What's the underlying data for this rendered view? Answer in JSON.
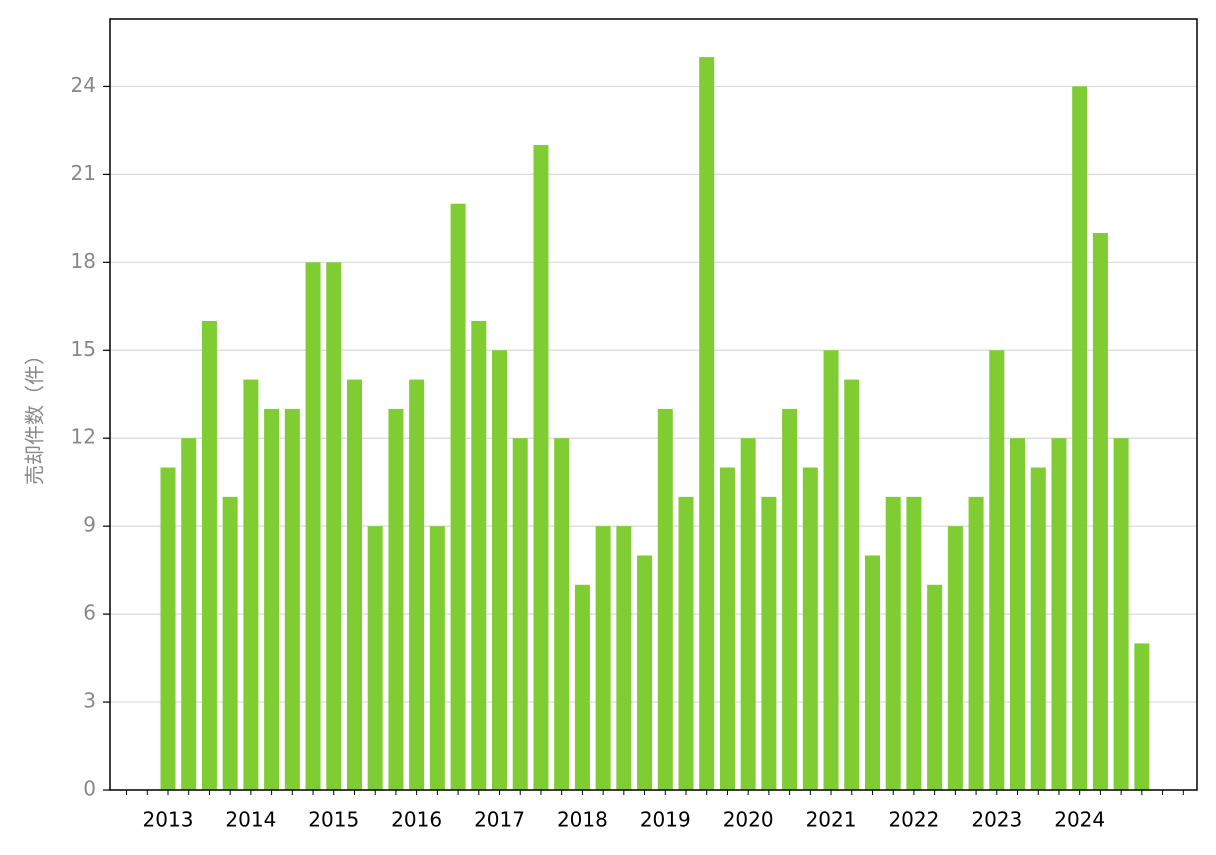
{
  "chart_data": {
    "type": "bar",
    "y_label": "売却件数（件）",
    "categories": [
      "2013",
      null,
      null,
      null,
      "2014",
      null,
      null,
      null,
      "2015",
      null,
      null,
      null,
      "2016",
      null,
      null,
      null,
      "2017",
      null,
      null,
      null,
      "2018",
      null,
      null,
      null,
      "2019",
      null,
      null,
      null,
      "2020",
      null,
      null,
      null,
      "2021",
      null,
      null,
      null,
      "2022",
      null,
      null,
      null,
      "2023",
      null,
      null,
      null,
      "2024",
      null,
      null,
      null
    ],
    "values": [
      11,
      12,
      16,
      10,
      14,
      13,
      13,
      18,
      18,
      14,
      9,
      13,
      14,
      9,
      20,
      16,
      15,
      12,
      22,
      12,
      7,
      9,
      9,
      8,
      13,
      10,
      25,
      11,
      12,
      10,
      13,
      11,
      15,
      14,
      8,
      10,
      10,
      7,
      9,
      10,
      15,
      12,
      11,
      12,
      24,
      19,
      12,
      5
    ],
    "color": "#7fcc33",
    "ylim": [
      0,
      26.3
    ],
    "yticks": [
      0,
      3,
      6,
      9,
      12,
      15,
      18,
      21,
      24
    ],
    "grid": true
  }
}
